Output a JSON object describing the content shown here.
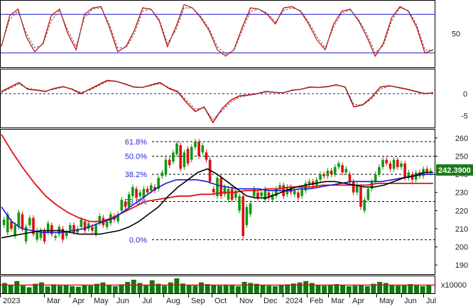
{
  "chart_data": {
    "type": "line",
    "x_labels": [
      "2023",
      "Mar",
      "Apr",
      "May",
      "Jun",
      "Jul",
      "Aug",
      "Sep",
      "Oct",
      "Nov",
      "Dec",
      "2024",
      "Feb",
      "Mar",
      "Apr",
      "May",
      "Jun",
      "Jul"
    ],
    "panels": [
      {
        "id": "stochastic",
        "ylim": [
          0,
          100
        ],
        "yticks": [
          "50"
        ],
        "ref_lines": [
          80,
          20
        ],
        "series": [
          {
            "color": "#cc0000",
            "style": "solid",
            "values": [
              30,
              78,
              88,
              45,
              22,
              35,
              78,
              88,
              50,
              25,
              80,
              90,
              92,
              60,
              22,
              30,
              55,
              90,
              88,
              70,
              30,
              60,
              95,
              90,
              75,
              55,
              25,
              15,
              25,
              60,
              90,
              88,
              80,
              65,
              90,
              92,
              85,
              65,
              40,
              25,
              65,
              85,
              88,
              70,
              45,
              15,
              35,
              75,
              92,
              85,
              60,
              20,
              25
            ]
          },
          {
            "color": "#555555",
            "style": "dashed",
            "values": [
              32,
              72,
              85,
              50,
              28,
              33,
              70,
              86,
              55,
              30,
              75,
              88,
              90,
              65,
              28,
              28,
              50,
              85,
              88,
              72,
              35,
              55,
              90,
              90,
              77,
              58,
              30,
              18,
              24,
              55,
              85,
              88,
              82,
              68,
              86,
              90,
              86,
              68,
              45,
              28,
              60,
              82,
              87,
              72,
              50,
              20,
              32,
              70,
              90,
              86,
              64,
              25,
              24
            ]
          }
        ]
      },
      {
        "id": "momentum",
        "ylim": [
          -7,
          5
        ],
        "yticks": [
          "0",
          "-5"
        ],
        "ref_lines": [
          0
        ],
        "series": [
          {
            "color": "#cc0000",
            "style": "solid",
            "values": [
              0.5,
              1.5,
              2.5,
              1.0,
              0.8,
              0.5,
              1.2,
              1.6,
              1.0,
              0.0,
              1.0,
              2.0,
              3.0,
              2.8,
              2.2,
              1.5,
              1.4,
              2.0,
              2.5,
              1.2,
              0.4,
              -2.0,
              -4.0,
              -3.0,
              -6.5,
              -3.5,
              -1.5,
              -0.5,
              -0.3,
              0.0,
              0.5,
              0.3,
              0.2,
              0.8,
              1.0,
              1.5,
              1.4,
              1.6,
              2.0,
              1.5,
              -3.0,
              -2.5,
              -0.8,
              1.5,
              1.8,
              1.4,
              1.0,
              0.5,
              0.0,
              0.2
            ]
          },
          {
            "color": "#555555",
            "style": "dashed",
            "values": [
              0.3,
              1.2,
              2.2,
              1.2,
              0.9,
              0.6,
              1.0,
              1.5,
              1.1,
              0.3,
              0.8,
              1.8,
              2.8,
              2.8,
              2.3,
              1.6,
              1.4,
              1.8,
              2.3,
              1.4,
              0.6,
              -1.5,
              -3.5,
              -3.2,
              -5.8,
              -4.0,
              -2.0,
              -0.8,
              -0.4,
              -0.1,
              0.4,
              0.3,
              0.2,
              0.7,
              1.0,
              1.4,
              1.4,
              1.5,
              1.9,
              1.6,
              -2.4,
              -2.6,
              -1.2,
              1.0,
              1.7,
              1.5,
              1.1,
              0.6,
              0.1,
              0.1
            ]
          }
        ]
      },
      {
        "id": "price",
        "ylim": [
          185,
          265
        ],
        "yticks": [
          "260",
          "250",
          "240",
          "230",
          "220",
          "210",
          "200",
          "190"
        ],
        "price_tag": "242.3900",
        "fib_levels": [
          {
            "label": "61.8%",
            "value": 258
          },
          {
            "label": "50.0%",
            "value": 250
          },
          {
            "label": "38.2%",
            "value": 240
          },
          {
            "label": "23.6%",
            "value": 225
          },
          {
            "label": "0.0%",
            "value": 204
          }
        ],
        "candles": [
          [
            212,
            215
          ],
          [
            208,
            218
          ],
          [
            214,
            210
          ],
          [
            206,
            212
          ],
          [
            211,
            219
          ],
          [
            218,
            210
          ],
          [
            203,
            211
          ],
          [
            212,
            216
          ],
          [
            216,
            207
          ],
          [
            204,
            209
          ],
          [
            205,
            209
          ],
          [
            209,
            203
          ],
          [
            208,
            213
          ],
          [
            212,
            207
          ],
          [
            205,
            206
          ],
          [
            207,
            211
          ],
          [
            210,
            204
          ],
          [
            206,
            208
          ],
          [
            209,
            212
          ],
          [
            212,
            208
          ],
          [
            208,
            210
          ],
          [
            211,
            215
          ],
          [
            214,
            209
          ],
          [
            210,
            213
          ],
          [
            211,
            209
          ],
          [
            207,
            212
          ],
          [
            213,
            217
          ],
          [
            216,
            212
          ],
          [
            211,
            214
          ],
          [
            213,
            218
          ],
          [
            217,
            215
          ],
          [
            214,
            218
          ],
          [
            220,
            226
          ],
          [
            225,
            222
          ],
          [
            222,
            229
          ],
          [
            228,
            233
          ],
          [
            232,
            227
          ],
          [
            228,
            230
          ],
          [
            227,
            232
          ],
          [
            232,
            230
          ],
          [
            231,
            234
          ],
          [
            233,
            231
          ],
          [
            232,
            238
          ],
          [
            239,
            241
          ],
          [
            240,
            248
          ],
          [
            248,
            245
          ],
          [
            247,
            252
          ],
          [
            251,
            257
          ],
          [
            256,
            243
          ],
          [
            244,
            252
          ],
          [
            254,
            246
          ],
          [
            248,
            255
          ],
          [
            255,
            258
          ],
          [
            258,
            250
          ],
          [
            252,
            256
          ],
          [
            252,
            248
          ],
          [
            248,
            236
          ],
          [
            232,
            230
          ],
          [
            228,
            238
          ],
          [
            238,
            228
          ],
          [
            229,
            233
          ],
          [
            226,
            232
          ],
          [
            232,
            226
          ],
          [
            227,
            231
          ],
          [
            220,
            228
          ],
          [
            228,
            206
          ],
          [
            212,
            222
          ],
          [
            218,
            224
          ],
          [
            228,
            232
          ],
          [
            230,
            227
          ],
          [
            228,
            230
          ],
          [
            226,
            232
          ],
          [
            230,
            227
          ],
          [
            226,
            229
          ],
          [
            228,
            232
          ],
          [
            232,
            234
          ],
          [
            234,
            228
          ],
          [
            229,
            233
          ],
          [
            233,
            230
          ],
          [
            229,
            231
          ],
          [
            230,
            227
          ],
          [
            228,
            232
          ],
          [
            231,
            235
          ],
          [
            234,
            236
          ],
          [
            236,
            234
          ],
          [
            234,
            237
          ],
          [
            237,
            240
          ],
          [
            240,
            239
          ],
          [
            239,
            242
          ],
          [
            242,
            240
          ],
          [
            240,
            244
          ],
          [
            244,
            246
          ],
          [
            245,
            241
          ],
          [
            241,
            243
          ],
          [
            240,
            236
          ],
          [
            236,
            230
          ],
          [
            230,
            234
          ],
          [
            233,
            222
          ],
          [
            220,
            226
          ],
          [
            226,
            232
          ],
          [
            232,
            236
          ],
          [
            236,
            240
          ],
          [
            240,
            244
          ],
          [
            244,
            248
          ],
          [
            248,
            246
          ],
          [
            246,
            243
          ],
          [
            243,
            248
          ],
          [
            248,
            244
          ],
          [
            244,
            246
          ],
          [
            246,
            238
          ],
          [
            238,
            241
          ],
          [
            240,
            237
          ],
          [
            237,
            241
          ],
          [
            241,
            239
          ],
          [
            239,
            243
          ],
          [
            243,
            241
          ],
          [
            241,
            242
          ]
        ],
        "ma_black": [
          205,
          206,
          207,
          208,
          209,
          209,
          209,
          208,
          207,
          207,
          207,
          208,
          209,
          211,
          214,
          218,
          222,
          228,
          233,
          237,
          241,
          243,
          240,
          236,
          232,
          228,
          227,
          227,
          229,
          231,
          233,
          234,
          235,
          236,
          236,
          235,
          234,
          233,
          233,
          234,
          236,
          238,
          239,
          241,
          241
        ],
        "ma_blue": [
          222,
          214,
          210,
          209,
          208,
          208,
          208,
          209,
          210,
          212,
          214,
          216,
          220,
          224,
          228,
          232,
          235,
          237,
          237,
          237,
          236,
          234,
          233,
          232,
          232,
          232,
          231,
          231,
          231,
          232,
          232,
          233,
          234,
          235,
          236,
          236,
          236,
          236,
          237,
          238,
          239,
          240,
          240
        ],
        "ma_red": [
          262,
          252,
          243,
          235,
          228,
          223,
          219,
          216,
          214,
          214,
          216,
          219,
          222,
          225,
          226,
          227,
          228,
          228,
          229,
          229,
          230,
          230,
          231,
          231,
          232,
          232,
          233,
          233,
          233,
          234,
          234,
          234,
          234,
          234,
          235,
          235,
          235,
          235,
          235,
          235
        ]
      },
      {
        "id": "volume",
        "unit_label": "x10000",
        "volumes": [
          38,
          30,
          45,
          28,
          22,
          35,
          40,
          25,
          33,
          28,
          30,
          26,
          24,
          30,
          28,
          35,
          40,
          30,
          26,
          33,
          42,
          50,
          38,
          30,
          48,
          35,
          28,
          40,
          55,
          36,
          30,
          28,
          40,
          34,
          30,
          28,
          32,
          30,
          26,
          42,
          38,
          35,
          30,
          28,
          26,
          30,
          33,
          36,
          40,
          45,
          38,
          30,
          28,
          32,
          34,
          30,
          26,
          28,
          30,
          26,
          35,
          42,
          38,
          30,
          28,
          30,
          34,
          30,
          26,
          30
        ],
        "avg_value": 0.55
      }
    ]
  }
}
